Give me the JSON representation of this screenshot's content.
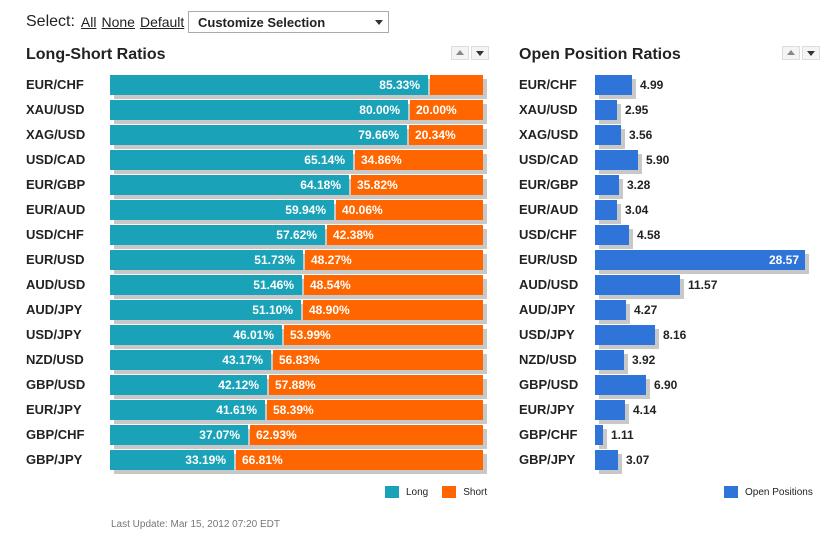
{
  "controls": {
    "select_label": "Select:",
    "all_label": "All",
    "none_label": "None",
    "default_label": "Default",
    "customize_label": "Customize Selection"
  },
  "panels": {
    "long_short_title": "Long-Short Ratios",
    "open_position_title": "Open Position Ratios"
  },
  "legend": {
    "long": "Long",
    "short": "Short",
    "open_positions": "Open Positions"
  },
  "footer": {
    "last_update": "Last Update: Mar 15, 2012 07:20 EDT"
  },
  "colors": {
    "long": "#1aa2b8",
    "short": "#ff6600",
    "open_positions": "#2f74d8",
    "shadow": "#c8c8c8"
  },
  "chart_data": [
    {
      "type": "bar",
      "orientation": "horizontal",
      "stacked": true,
      "title": "Long-Short Ratios",
      "categories": [
        "EUR/CHF",
        "XAU/USD",
        "XAG/USD",
        "USD/CAD",
        "EUR/GBP",
        "EUR/AUD",
        "USD/CHF",
        "EUR/USD",
        "AUD/USD",
        "AUD/JPY",
        "USD/JPY",
        "NZD/USD",
        "GBP/USD",
        "EUR/JPY",
        "GBP/CHF",
        "GBP/JPY"
      ],
      "series": [
        {
          "name": "Long",
          "values": [
            85.33,
            80.0,
            79.66,
            65.14,
            64.18,
            59.94,
            57.62,
            51.73,
            51.46,
            51.1,
            46.01,
            43.17,
            42.12,
            41.61,
            37.07,
            33.19
          ],
          "labels": [
            "85.33%",
            "80.00%",
            "79.66%",
            "65.14%",
            "64.18%",
            "59.94%",
            "57.62%",
            "51.73%",
            "51.46%",
            "51.10%",
            "46.01%",
            "43.17%",
            "42.12%",
            "41.61%",
            "37.07%",
            "33.19%"
          ]
        },
        {
          "name": "Short",
          "values": [
            14.67,
            20.0,
            20.34,
            34.86,
            35.82,
            40.06,
            42.38,
            48.27,
            48.54,
            48.9,
            53.99,
            56.83,
            57.88,
            58.39,
            62.93,
            66.81
          ],
          "labels": [
            "",
            "20.00%",
            "20.34%",
            "34.86%",
            "35.82%",
            "40.06%",
            "42.38%",
            "48.27%",
            "48.54%",
            "48.90%",
            "53.99%",
            "56.83%",
            "57.88%",
            "58.39%",
            "62.93%",
            "66.81%"
          ]
        }
      ],
      "xlim": [
        0,
        100
      ],
      "legend_position": "bottom-right"
    },
    {
      "type": "bar",
      "orientation": "horizontal",
      "title": "Open Position Ratios",
      "categories": [
        "EUR/CHF",
        "XAU/USD",
        "XAG/USD",
        "USD/CAD",
        "EUR/GBP",
        "EUR/AUD",
        "USD/CHF",
        "EUR/USD",
        "AUD/USD",
        "AUD/JPY",
        "USD/JPY",
        "NZD/USD",
        "GBP/USD",
        "EUR/JPY",
        "GBP/CHF",
        "GBP/JPY"
      ],
      "series": [
        {
          "name": "Open Positions",
          "values": [
            4.99,
            2.95,
            3.56,
            5.9,
            3.28,
            3.04,
            4.58,
            28.57,
            11.57,
            4.27,
            8.16,
            3.92,
            6.9,
            4.14,
            1.11,
            3.07
          ],
          "labels": [
            "4.99",
            "2.95",
            "3.56",
            "5.90",
            "3.28",
            "3.04",
            "4.58",
            "28.57",
            "11.57",
            "4.27",
            "8.16",
            "3.92",
            "6.90",
            "4.14",
            "1.11",
            "3.07"
          ]
        }
      ],
      "xlim": [
        0,
        28.57
      ],
      "legend_position": "bottom-right"
    }
  ]
}
